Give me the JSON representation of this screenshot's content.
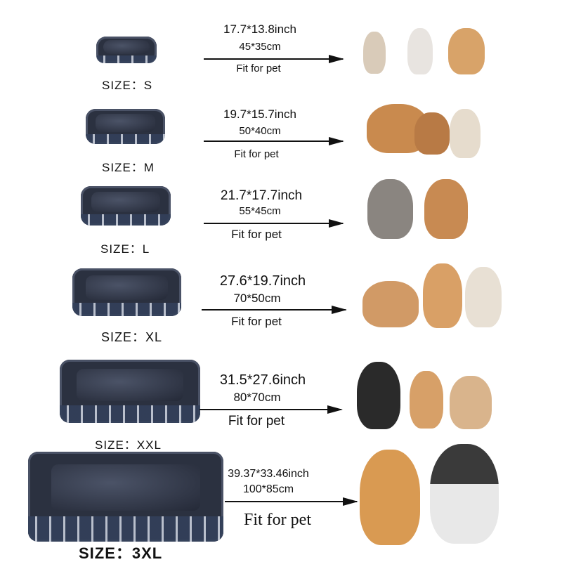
{
  "rows": [
    {
      "size": "SIZE：S",
      "inch": "17.7*13.8inch",
      "cm": "45*35cm",
      "fit": "Fit for pet",
      "pets": [
        "kitten",
        "kitten",
        "puppy"
      ]
    },
    {
      "size": "SIZE：M",
      "inch": "19.7*15.7inch",
      "cm": "50*40cm",
      "fit": "Fit for pet",
      "pets": [
        "puppy",
        "puppy",
        "pug"
      ]
    },
    {
      "size": "SIZE：L",
      "inch": "21.7*17.7inch",
      "cm": "55*45cm",
      "fit": "Fit for pet",
      "pets": [
        "cat",
        "chihuahua"
      ]
    },
    {
      "size": "SIZE：XL",
      "inch": "27.6*19.7inch",
      "cm": "70*50cm",
      "fit": "Fit for pet",
      "pets": [
        "cat",
        "corgi",
        "terrier"
      ]
    },
    {
      "size": "SIZE：XXL",
      "inch": "31.5*27.6inch",
      "cm": "80*70cm",
      "fit": "Fit for pet",
      "pets": [
        "border-collie",
        "corgi",
        "bulldog"
      ]
    },
    {
      "size": "SIZE：3XL",
      "inch": "39.37*33.46inch",
      "cm": "100*85cm",
      "fit": "Fit for pet",
      "pets": [
        "golden-retriever",
        "husky"
      ]
    }
  ]
}
